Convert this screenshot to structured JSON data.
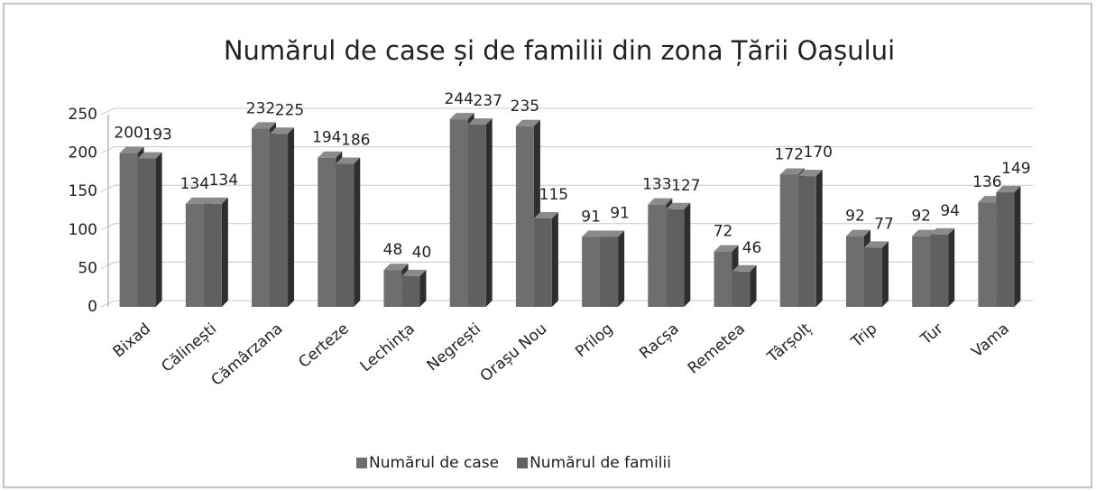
{
  "chart_data": {
    "type": "bar",
    "title": "Numărul de case și de familii din zona Țării Oașului",
    "categories": [
      "Bixad",
      "Călinești",
      "Cămârzana",
      "Certeze",
      "Lechința",
      "Negrești",
      "Orașu Nou",
      "Prilog",
      "Racșa",
      "Remetea",
      "Târșolț",
      "Trip",
      "Tur",
      "Vama"
    ],
    "series": [
      {
        "name": "Numărul de case",
        "color": "#6e6e6e",
        "values": [
          200,
          134,
          232,
          194,
          48,
          244,
          235,
          91,
          133,
          72,
          172,
          92,
          92,
          136
        ]
      },
      {
        "name": "Numărul de familii",
        "color": "#606060",
        "values": [
          193,
          134,
          225,
          186,
          40,
          237,
          115,
          91,
          127,
          46,
          170,
          77,
          94,
          149
        ]
      }
    ],
    "ylim": [
      0,
      250
    ],
    "yticks": [
      0,
      50,
      100,
      150,
      200,
      250
    ],
    "grid": true,
    "legend": "bottom"
  }
}
